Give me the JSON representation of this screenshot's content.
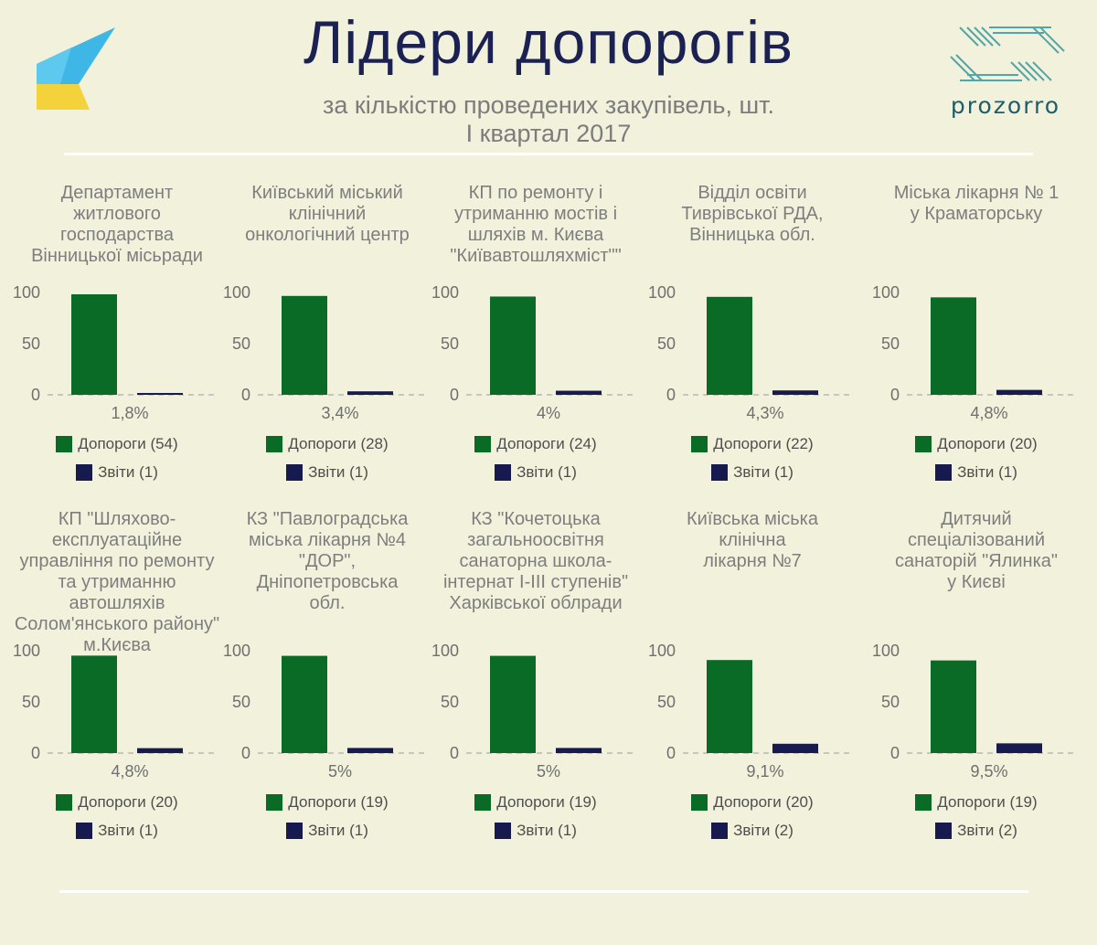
{
  "header": {
    "title": "Лідери допорогів",
    "subtitle_line1": "за кількістю проведених закупівель, шт.",
    "subtitle_line2": "І квартал 2017",
    "brand_right": "prozorro"
  },
  "colors": {
    "dopohy": "#0a6b27",
    "zvity": "#161a4e",
    "background": "#f1f1dc"
  },
  "chart_data": [
    {
      "type": "bar",
      "title_lines": [
        "Департамент",
        "житлового",
        "господарства",
        "Вінницької місьради"
      ],
      "categories": [
        "Допороги",
        "Звіти"
      ],
      "values": [
        98.2,
        1.8
      ],
      "pct_label": "1,8%",
      "ylim": [
        0,
        100
      ],
      "yticks": [
        "100",
        "50",
        "0"
      ],
      "legend": [
        "Допороги (54)",
        "Звіти (1)"
      ]
    },
    {
      "type": "bar",
      "title_lines": [
        "Київський міський",
        "клінічний",
        "онкологічний центр"
      ],
      "categories": [
        "Допороги",
        "Звіти"
      ],
      "values": [
        96.6,
        3.4
      ],
      "pct_label": "3,4%",
      "ylim": [
        0,
        100
      ],
      "yticks": [
        "100",
        "50",
        "0"
      ],
      "legend": [
        "Допороги (28)",
        "Звіти (1)"
      ]
    },
    {
      "type": "bar",
      "title_lines": [
        "КП по ремонту і",
        "утриманню мостів і",
        "шляхів м. Києва",
        "\"Київавтошляхміст\"\""
      ],
      "categories": [
        "Допороги",
        "Звіти"
      ],
      "values": [
        96,
        4
      ],
      "pct_label": "4%",
      "ylim": [
        0,
        100
      ],
      "yticks": [
        "100",
        "50",
        "0"
      ],
      "legend": [
        "Допороги (24)",
        "Звіти (1)"
      ]
    },
    {
      "type": "bar",
      "title_lines": [
        "Відділ освіти",
        "Тиврівської РДА,",
        "Вінницька обл."
      ],
      "categories": [
        "Допороги",
        "Звіти"
      ],
      "values": [
        95.7,
        4.3
      ],
      "pct_label": "4,3%",
      "ylim": [
        0,
        100
      ],
      "yticks": [
        "100",
        "50",
        "0"
      ],
      "legend": [
        "Допороги (22)",
        "Звіти (1)"
      ]
    },
    {
      "type": "bar",
      "title_lines": [
        "Міська лікарня № 1",
        "у Краматорську"
      ],
      "categories": [
        "Допороги",
        "Звіти"
      ],
      "values": [
        95.2,
        4.8
      ],
      "pct_label": "4,8%",
      "ylim": [
        0,
        100
      ],
      "yticks": [
        "100",
        "50",
        "0"
      ],
      "legend": [
        "Допороги (20)",
        "Звіти (1)"
      ]
    },
    {
      "type": "bar",
      "title_lines": [
        "КП \"Шляхово-",
        "експлуатаційне",
        "управління по ремонту",
        "та утриманню",
        "автошляхів",
        "Солом'янського району\"",
        "м.Києва"
      ],
      "categories": [
        "Допороги",
        "Звіти"
      ],
      "values": [
        95.2,
        4.8
      ],
      "pct_label": "4,8%",
      "ylim": [
        0,
        100
      ],
      "yticks": [
        "100",
        "50",
        "0"
      ],
      "legend": [
        "Допороги (20)",
        "Звіти (1)"
      ]
    },
    {
      "type": "bar",
      "title_lines": [
        "КЗ \"Павлоградська",
        "міська лікарня №4",
        "\"ДОР\",",
        "Дніпопетровська",
        "обл."
      ],
      "categories": [
        "Допороги",
        "Звіти"
      ],
      "values": [
        95,
        5
      ],
      "pct_label": "5%",
      "ylim": [
        0,
        100
      ],
      "yticks": [
        "100",
        "50",
        "0"
      ],
      "legend": [
        "Допороги (19)",
        "Звіти (1)"
      ]
    },
    {
      "type": "bar",
      "title_lines": [
        "КЗ \"Кочетоцька",
        "загальноосвітня",
        "санаторна школа-",
        "інтернат І-ІІІ ступенів\"",
        "Харківської облради"
      ],
      "categories": [
        "Допороги",
        "Звіти"
      ],
      "values": [
        95,
        5
      ],
      "pct_label": "5%",
      "ylim": [
        0,
        100
      ],
      "yticks": [
        "100",
        "50",
        "0"
      ],
      "legend": [
        "Допороги (19)",
        "Звіти (1)"
      ]
    },
    {
      "type": "bar",
      "title_lines": [
        "Київська міська",
        "клінічна",
        "лікарня №7"
      ],
      "categories": [
        "Допороги",
        "Звіти"
      ],
      "values": [
        90.9,
        9.1
      ],
      "pct_label": "9,1%",
      "ylim": [
        0,
        100
      ],
      "yticks": [
        "100",
        "50",
        "0"
      ],
      "legend": [
        "Допороги (20)",
        "Звіти (2)"
      ]
    },
    {
      "type": "bar",
      "title_lines": [
        "Дитячий",
        "спеціалізований",
        "санаторій \"Ялинка\"",
        "у Києві"
      ],
      "categories": [
        "Допороги",
        "Звіти"
      ],
      "values": [
        90.5,
        9.5
      ],
      "pct_label": "9,5%",
      "ylim": [
        0,
        100
      ],
      "yticks": [
        "100",
        "50",
        "0"
      ],
      "legend": [
        "Допороги (19)",
        "Звіти (2)"
      ]
    }
  ]
}
